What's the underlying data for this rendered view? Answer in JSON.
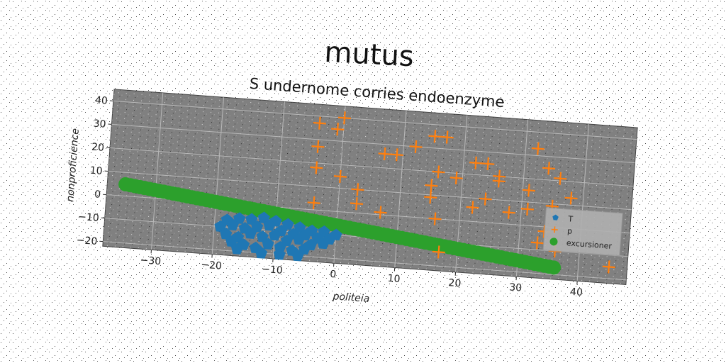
{
  "chart_data": {
    "type": "scatter",
    "title": "mutus",
    "subtitle": "S undernome corries endoenzyme",
    "xlabel": "politeia",
    "ylabel": "nonproficience",
    "xlim": [
      -38,
      48
    ],
    "ylim": [
      -22,
      45
    ],
    "xticks": [
      -30,
      -20,
      -10,
      0,
      10,
      20,
      30,
      40
    ],
    "yticks": [
      -20,
      -10,
      0,
      10,
      20,
      30,
      40
    ],
    "grid": true,
    "legend_position": "right",
    "background_color": "#808080",
    "series": [
      {
        "name": "T",
        "marker": "pentagon",
        "color": "#1f77b4",
        "points": [
          [
            -18,
            -7
          ],
          [
            -16,
            -6
          ],
          [
            -14,
            -6
          ],
          [
            -12,
            -5
          ],
          [
            -10,
            -6
          ],
          [
            -8,
            -7
          ],
          [
            -6,
            -8
          ],
          [
            -4,
            -9
          ],
          [
            -2,
            -9
          ],
          [
            0,
            -10
          ],
          [
            -19,
            -10
          ],
          [
            -17,
            -9
          ],
          [
            -15,
            -10
          ],
          [
            -13,
            -9
          ],
          [
            -11,
            -8
          ],
          [
            -9,
            -10
          ],
          [
            -7,
            -11
          ],
          [
            -5,
            -11
          ],
          [
            -3,
            -12
          ],
          [
            -1,
            -12
          ],
          [
            -18,
            -13
          ],
          [
            -16,
            -14
          ],
          [
            -14,
            -12
          ],
          [
            -12,
            -13
          ],
          [
            -10,
            -12
          ],
          [
            -8,
            -14
          ],
          [
            -6,
            -13
          ],
          [
            -4,
            -15
          ],
          [
            -2,
            -14
          ],
          [
            -17,
            -16
          ],
          [
            -15,
            -17
          ],
          [
            -13,
            -18
          ],
          [
            -11,
            -16
          ],
          [
            -9,
            -17
          ],
          [
            -7,
            -18
          ],
          [
            -5,
            -17
          ],
          [
            -12,
            -20
          ],
          [
            -9,
            -20
          ],
          [
            -6,
            -20
          ],
          [
            -16,
            -19
          ]
        ]
      },
      {
        "name": "p",
        "marker": "plus",
        "color": "#ff7f0e",
        "points": [
          [
            -4,
            37
          ],
          [
            0,
            40
          ],
          [
            -1,
            35
          ],
          [
            -4,
            27
          ],
          [
            -4,
            18
          ],
          [
            0,
            15
          ],
          [
            3,
            10
          ],
          [
            -4,
            3
          ],
          [
            3,
            4
          ],
          [
            7,
            26
          ],
          [
            9,
            26
          ],
          [
            12,
            30
          ],
          [
            15,
            35
          ],
          [
            17,
            35
          ],
          [
            15,
            14
          ],
          [
            15,
            9
          ],
          [
            16,
            20
          ],
          [
            19,
            18
          ],
          [
            22,
            25
          ],
          [
            24,
            25
          ],
          [
            26,
            20
          ],
          [
            26,
            18
          ],
          [
            24,
            10
          ],
          [
            22,
            6
          ],
          [
            28,
            5
          ],
          [
            31,
            15
          ],
          [
            31,
            7
          ],
          [
            32,
            33
          ],
          [
            34,
            25
          ],
          [
            36,
            21
          ],
          [
            38,
            13
          ],
          [
            35,
            9
          ],
          [
            34,
            -2
          ],
          [
            33,
            -7
          ],
          [
            36,
            -10
          ],
          [
            45,
            -15
          ],
          [
            17,
            -14
          ],
          [
            16,
            0
          ],
          [
            7,
            1
          ]
        ]
      },
      {
        "name": "excursioner",
        "marker": "circle",
        "color": "#2ca02c",
        "line": {
          "x_start": -35,
          "y_start": 5,
          "x_end": 36,
          "y_end": -17
        }
      }
    ]
  }
}
